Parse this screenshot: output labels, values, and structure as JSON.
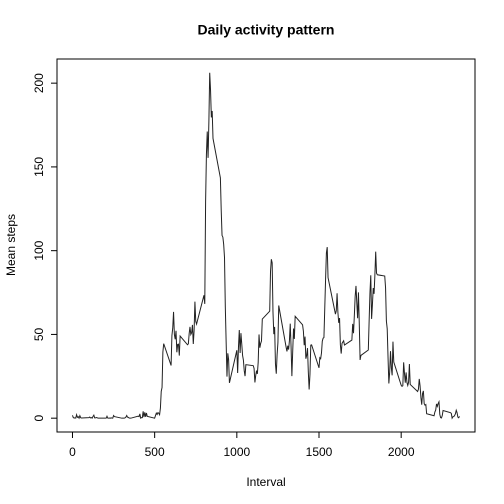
{
  "chart_data": {
    "type": "line",
    "title": "Daily activity pattern",
    "xlabel": "Interval",
    "ylabel": "Mean steps",
    "color": "#222222",
    "x": [
      0,
      5,
      10,
      15,
      20,
      25,
      30,
      35,
      40,
      45,
      50,
      55,
      100,
      105,
      110,
      115,
      120,
      125,
      130,
      135,
      140,
      145,
      150,
      155,
      200,
      205,
      210,
      215,
      220,
      225,
      230,
      235,
      240,
      245,
      250,
      255,
      300,
      305,
      310,
      315,
      320,
      325,
      330,
      335,
      340,
      345,
      350,
      355,
      400,
      405,
      410,
      415,
      420,
      425,
      430,
      435,
      440,
      445,
      450,
      455,
      500,
      505,
      510,
      515,
      520,
      525,
      530,
      535,
      540,
      545,
      550,
      555,
      600,
      605,
      610,
      615,
      620,
      625,
      630,
      635,
      640,
      645,
      650,
      655,
      700,
      705,
      710,
      715,
      720,
      725,
      730,
      735,
      740,
      745,
      750,
      755,
      800,
      805,
      810,
      815,
      820,
      825,
      830,
      835,
      840,
      845,
      850,
      855,
      900,
      905,
      910,
      915,
      920,
      925,
      930,
      935,
      940,
      945,
      950,
      955,
      1000,
      1005,
      1010,
      1015,
      1020,
      1025,
      1030,
      1035,
      1040,
      1045,
      1050,
      1055,
      1100,
      1105,
      1110,
      1115,
      1120,
      1125,
      1130,
      1135,
      1140,
      1145,
      1150,
      1155,
      1200,
      1205,
      1210,
      1215,
      1220,
      1225,
      1230,
      1235,
      1240,
      1245,
      1250,
      1255,
      1300,
      1305,
      1310,
      1315,
      1320,
      1325,
      1330,
      1335,
      1340,
      1345,
      1350,
      1355,
      1400,
      1405,
      1410,
      1415,
      1420,
      1425,
      1430,
      1435,
      1440,
      1445,
      1450,
      1455,
      1500,
      1505,
      1510,
      1515,
      1520,
      1525,
      1530,
      1535,
      1540,
      1545,
      1550,
      1555,
      1600,
      1605,
      1610,
      1615,
      1620,
      1625,
      1630,
      1635,
      1640,
      1645,
      1650,
      1655,
      1700,
      1705,
      1710,
      1715,
      1720,
      1725,
      1730,
      1735,
      1740,
      1745,
      1750,
      1755,
      1800,
      1805,
      1810,
      1815,
      1820,
      1825,
      1830,
      1835,
      1840,
      1845,
      1850,
      1855,
      1900,
      1905,
      1910,
      1915,
      1920,
      1925,
      1930,
      1935,
      1940,
      1945,
      1950,
      1955,
      2000,
      2005,
      2010,
      2015,
      2020,
      2025,
      2030,
      2035,
      2040,
      2045,
      2050,
      2055,
      2100,
      2105,
      2110,
      2115,
      2120,
      2125,
      2130,
      2135,
      2140,
      2145,
      2150,
      2155,
      2200,
      2205,
      2210,
      2215,
      2220,
      2225,
      2230,
      2235,
      2240,
      2245,
      2250,
      2255,
      2300,
      2305,
      2310,
      2315,
      2320,
      2325,
      2330,
      2335,
      2340,
      2345,
      2350,
      2355
    ],
    "values": [
      1.72,
      0.34,
      0.13,
      0.15,
      0.08,
      2.09,
      0.53,
      0.87,
      0,
      1.47,
      0.3,
      0.13,
      0.32,
      0.68,
      0.15,
      0.34,
      0,
      1.11,
      1.83,
      0.17,
      0.17,
      0.38,
      0.26,
      0,
      0,
      0,
      1.13,
      0,
      0,
      0.13,
      0,
      0.23,
      0,
      0,
      1.55,
      0.94,
      0,
      0,
      0,
      0,
      0.21,
      0.62,
      1.62,
      0.58,
      0.49,
      0.08,
      0,
      0,
      1.19,
      0.94,
      2.57,
      0,
      0.34,
      0.36,
      4.11,
      0.66,
      3.49,
      0.83,
      3.11,
      1.11,
      0,
      1.57,
      3,
      2.25,
      3.32,
      2.96,
      2.09,
      6.06,
      16.02,
      18.34,
      39.45,
      44.49,
      31.49,
      49.26,
      53.77,
      63.45,
      49.96,
      47.08,
      52.15,
      39.34,
      44.02,
      44.17,
      37.36,
      49.04,
      43.81,
      44.38,
      50.51,
      54.51,
      49.92,
      50.98,
      55.68,
      44.32,
      52.26,
      69.55,
      57.85,
      56.15,
      73.38,
      68.21,
      129.43,
      157.53,
      171.15,
      155.4,
      177.3,
      206.17,
      195.92,
      179.57,
      183.4,
      167.02,
      143.45,
      124.04,
      109.11,
      108.11,
      103.72,
      95.96,
      66.21,
      45.23,
      24.79,
      38.75,
      34.98,
      21.06,
      40.57,
      26.98,
      42.42,
      52.66,
      38.92,
      50.79,
      44.28,
      37.42,
      34.7,
      28.34,
      25.09,
      31.94,
      31.36,
      29.68,
      21.32,
      25.55,
      28.38,
      26.47,
      33.43,
      49.98,
      42.04,
      44.6,
      46.04,
      59.19,
      63.87,
      87.7,
      94.85,
      92.77,
      63.4,
      50.17,
      54.47,
      32.42,
      26.53,
      37.74,
      45.06,
      67.28,
      42.34,
      39.88,
      43.26,
      40.98,
      46.25,
      56.43,
      42.75,
      25.13,
      39.97,
      53.55,
      47.32,
      60.81,
      55.75,
      51.96,
      43.58,
      48.7,
      35.47,
      37.55,
      41.85,
      27.51,
      17.11,
      26.08,
      43.62,
      43.77,
      30.02,
      36.08,
      35.49,
      38.85,
      45.96,
      47.75,
      48.13,
      65.32,
      82.91,
      98.66,
      102.11,
      83.96,
      62.13,
      64.13,
      74.55,
      63.17,
      56.91,
      59.77,
      43.87,
      38.57,
      44.66,
      45.45,
      46.21,
      43.68,
      46.62,
      56.3,
      50.72,
      61.23,
      72.72,
      78.94,
      68.94,
      59.66,
      75.09,
      56.51,
      34.77,
      37.45,
      40.68,
      58.02,
      74.7,
      85.32,
      59.26,
      67.77,
      77.7,
      74.25,
      85.34,
      99.45,
      86.58,
      85.6,
      84.87,
      77.83,
      58.04,
      53.36,
      36.33,
      20.72,
      27.4,
      40.02,
      30.21,
      25.55,
      45.66,
      33.53,
      19.62,
      19.02,
      19.34,
      33.34,
      26.81,
      21.17,
      27.3,
      21.34,
      19.55,
      21.32,
      32.3,
      20.15,
      15.94,
      17.23,
      23.45,
      19.25,
      12.45,
      8.02,
      14.66,
      16.3,
      8.68,
      7.79,
      8.13,
      2.62,
      1.45,
      3.68,
      4.81,
      8.51,
      7.08,
      8.7,
      9.75,
      2.21,
      0.32,
      0.11,
      1.6,
      4.6,
      3.3,
      2.85,
      0,
      0.83,
      0.96,
      1.58,
      2.6,
      4.7,
      3.3,
      0.64,
      0.23,
      1.08
    ],
    "xlim": [
      -94.2,
      2449.2
    ],
    "ylim": [
      -8.25,
      214.42
    ],
    "xticks": [
      0,
      500,
      1000,
      1500,
      2000
    ],
    "yticks": [
      0,
      50,
      100,
      150,
      200
    ]
  }
}
